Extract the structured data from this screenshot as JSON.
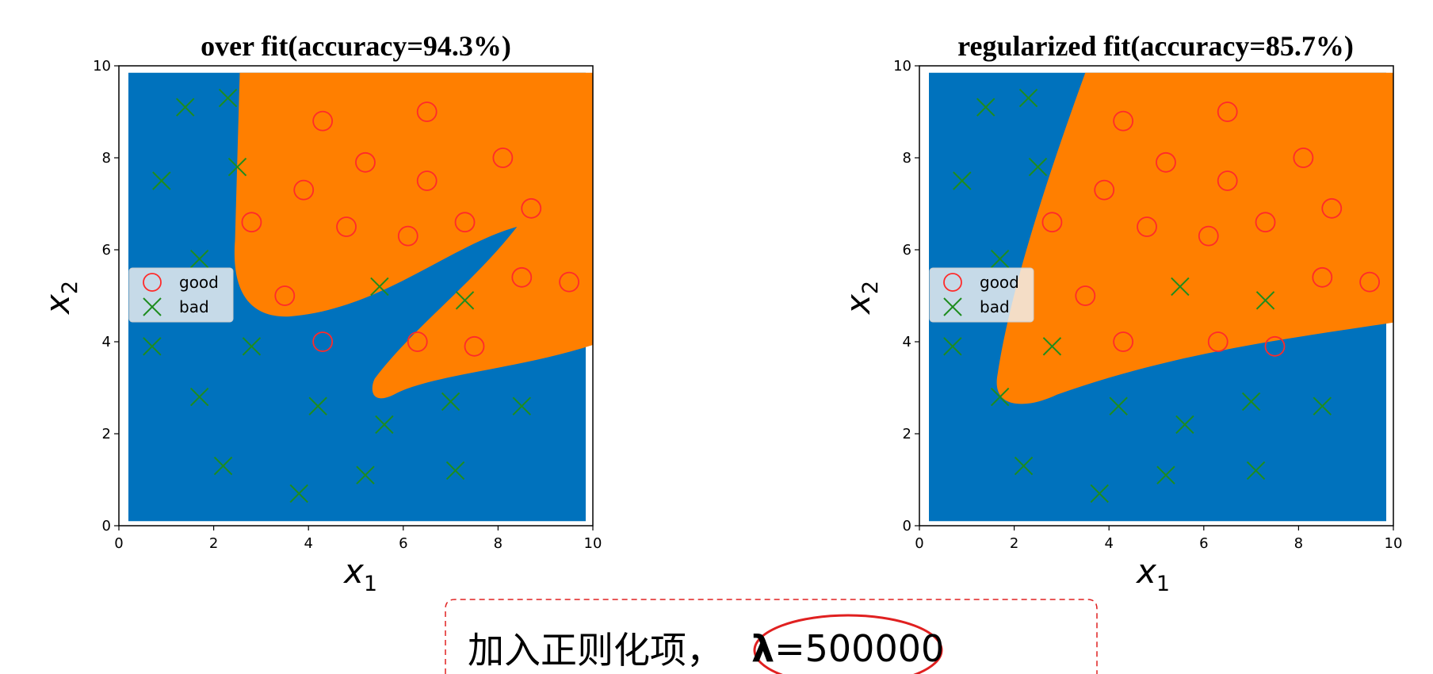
{
  "chart_data": [
    {
      "type": "scatter",
      "title": "over fit(accuracy=94.3%)",
      "xlabel": "x",
      "xlabel_sub": "1",
      "ylabel": "x",
      "ylabel_sub": "2",
      "xlim": [
        0,
        10
      ],
      "ylim": [
        0,
        10
      ],
      "xticks": [
        "0",
        "2",
        "4",
        "6",
        "8",
        "10"
      ],
      "yticks": [
        "0",
        "2",
        "4",
        "6",
        "8",
        "10"
      ],
      "grid": false,
      "legend_position": "center-left",
      "region_colors": {
        "bad": "#0072bd",
        "good": "#ff7f00"
      },
      "series": [
        {
          "name": "good",
          "marker": "circle",
          "color": "#ff2a2a",
          "points": [
            [
              4.3,
              8.8
            ],
            [
              6.5,
              9.0
            ],
            [
              5.2,
              7.9
            ],
            [
              3.9,
              7.3
            ],
            [
              6.5,
              7.5
            ],
            [
              8.1,
              8.0
            ],
            [
              2.8,
              6.6
            ],
            [
              4.8,
              6.5
            ],
            [
              6.1,
              6.3
            ],
            [
              7.3,
              6.6
            ],
            [
              8.7,
              6.9
            ],
            [
              3.5,
              5.0
            ],
            [
              8.5,
              5.4
            ],
            [
              9.5,
              5.3
            ],
            [
              4.3,
              4.0
            ],
            [
              6.3,
              4.0
            ],
            [
              7.5,
              3.9
            ]
          ]
        },
        {
          "name": "bad",
          "marker": "x",
          "color": "#1e8c1e",
          "points": [
            [
              1.4,
              9.1
            ],
            [
              2.3,
              9.3
            ],
            [
              0.9,
              7.5
            ],
            [
              2.5,
              7.8
            ],
            [
              1.7,
              5.8
            ],
            [
              5.5,
              5.2
            ],
            [
              7.3,
              4.9
            ],
            [
              0.7,
              3.9
            ],
            [
              2.8,
              3.9
            ],
            [
              1.7,
              2.8
            ],
            [
              4.2,
              2.6
            ],
            [
              5.6,
              2.2
            ],
            [
              7.0,
              2.7
            ],
            [
              8.5,
              2.6
            ],
            [
              2.2,
              1.3
            ],
            [
              5.2,
              1.1
            ],
            [
              7.1,
              1.2
            ],
            [
              3.8,
              0.7
            ]
          ]
        }
      ]
    },
    {
      "type": "scatter",
      "title": "regularized fit(accuracy=85.7%)",
      "xlabel": "x",
      "xlabel_sub": "1",
      "ylabel": "x",
      "ylabel_sub": "2",
      "xlim": [
        0,
        10
      ],
      "ylim": [
        0,
        10
      ],
      "xticks": [
        "0",
        "2",
        "4",
        "6",
        "8",
        "10"
      ],
      "yticks": [
        "0",
        "2",
        "4",
        "6",
        "8",
        "10"
      ],
      "grid": false,
      "legend_position": "center-left",
      "region_colors": {
        "bad": "#0072bd",
        "good": "#ff7f00"
      },
      "series": [
        {
          "name": "good",
          "marker": "circle",
          "color": "#ff2a2a",
          "points": [
            [
              4.3,
              8.8
            ],
            [
              6.5,
              9.0
            ],
            [
              5.2,
              7.9
            ],
            [
              3.9,
              7.3
            ],
            [
              6.5,
              7.5
            ],
            [
              8.1,
              8.0
            ],
            [
              2.8,
              6.6
            ],
            [
              4.8,
              6.5
            ],
            [
              6.1,
              6.3
            ],
            [
              7.3,
              6.6
            ],
            [
              8.7,
              6.9
            ],
            [
              3.5,
              5.0
            ],
            [
              8.5,
              5.4
            ],
            [
              9.5,
              5.3
            ],
            [
              4.3,
              4.0
            ],
            [
              6.3,
              4.0
            ],
            [
              7.5,
              3.9
            ]
          ]
        },
        {
          "name": "bad",
          "marker": "x",
          "color": "#1e8c1e",
          "points": [
            [
              1.4,
              9.1
            ],
            [
              2.3,
              9.3
            ],
            [
              0.9,
              7.5
            ],
            [
              2.5,
              7.8
            ],
            [
              1.7,
              5.8
            ],
            [
              5.5,
              5.2
            ],
            [
              7.3,
              4.9
            ],
            [
              0.7,
              3.9
            ],
            [
              2.8,
              3.9
            ],
            [
              1.7,
              2.8
            ],
            [
              4.2,
              2.6
            ],
            [
              5.6,
              2.2
            ],
            [
              7.0,
              2.7
            ],
            [
              8.5,
              2.6
            ],
            [
              2.2,
              1.3
            ],
            [
              5.2,
              1.1
            ],
            [
              7.1,
              1.2
            ],
            [
              3.8,
              0.7
            ]
          ]
        }
      ]
    }
  ],
  "annotation": {
    "prefix": "加入正则化项，",
    "lambda_symbol": "λ",
    "lambda_value": "=500000",
    "box_border_color": "#e02020",
    "circle_color": "#e02020"
  }
}
